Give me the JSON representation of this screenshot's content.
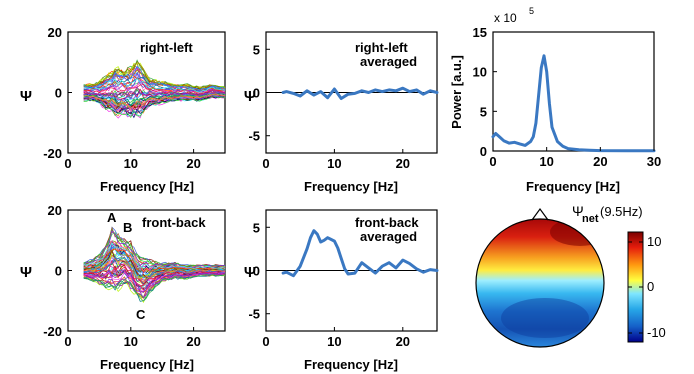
{
  "panels": {
    "p1": {
      "annotation": "right-left",
      "xlabel": "Frequency [Hz]",
      "ylabel": "Ψ"
    },
    "p2": {
      "annotation_line1": "right-left",
      "annotation_line2": "averaged",
      "xlabel": "Frequency [Hz]",
      "ylabel": "Ψ"
    },
    "p3": {
      "multiplier_base": "x 10",
      "multiplier_exp": "5",
      "xlabel": "Frequency [Hz]",
      "ylabel": "Power [a.u.]"
    },
    "p4": {
      "annotation": "front-back",
      "label_a": "A",
      "label_b": "B",
      "label_c": "C",
      "xlabel": "Frequency [Hz]",
      "ylabel": "Ψ"
    },
    "p5": {
      "annotation_line1": "front-back",
      "annotation_line2": "averaged",
      "xlabel": "Frequency [Hz]",
      "ylabel": "Ψ"
    },
    "p6": {
      "title_psi": "Ψ",
      "title_sub": "net",
      "title_freq": "(9.5Hz)",
      "colorbar_ticks": [
        "10",
        "0",
        "-10"
      ]
    }
  },
  "chart_data": [
    {
      "type": "line",
      "panel": "p1",
      "description_series": "many overlapping colored traces (one per channel)",
      "x": [
        2.5,
        4,
        5,
        6,
        7,
        8,
        9,
        10,
        11,
        12,
        13,
        15,
        17,
        19,
        21,
        23,
        25
      ],
      "envelope_upper": [
        3,
        3,
        4,
        6,
        8,
        9,
        8,
        9,
        12,
        9,
        5,
        4,
        3,
        3,
        2,
        3,
        2
      ],
      "envelope_lower": [
        -3,
        -3,
        -4,
        -6,
        -7,
        -9,
        -8,
        -9,
        -9,
        -8,
        -5,
        -4,
        -3,
        -3,
        -3,
        -2,
        -2
      ],
      "xlim": [
        0,
        25
      ],
      "ylim": [
        -20,
        20
      ],
      "xticks": [
        "0",
        "10",
        "20"
      ],
      "yticks": [
        "20",
        "0",
        "-20"
      ],
      "grid": false
    },
    {
      "type": "line",
      "panel": "p2",
      "series": [
        {
          "color": "#3a78c2",
          "x": [
            2.5,
            3,
            4,
            5,
            6,
            7,
            8,
            9,
            10,
            11,
            12,
            13,
            14,
            15,
            16,
            17,
            18,
            19,
            20,
            21,
            22,
            23,
            24,
            25
          ],
          "values": [
            0.0,
            0.1,
            -0.1,
            -0.4,
            0.2,
            -0.3,
            0.1,
            -0.6,
            0.4,
            -0.7,
            -0.2,
            -0.1,
            0.2,
            0.0,
            0.3,
            0.1,
            0.3,
            0.2,
            0.5,
            0.1,
            0.3,
            -0.2,
            0.2,
            0.0
          ]
        }
      ],
      "zero_line": true,
      "xlim": [
        0,
        25
      ],
      "ylim": [
        -7,
        7
      ],
      "xticks": [
        "0",
        "10",
        "20"
      ],
      "yticks": [
        "5",
        "0",
        "-5"
      ],
      "grid": false
    },
    {
      "type": "line",
      "panel": "p3",
      "series": [
        {
          "color": "#3a78c2",
          "x": [
            0,
            0.5,
            1,
            2,
            3,
            4,
            5,
            6,
            7,
            7.5,
            8,
            8.5,
            9,
            9.5,
            10,
            10.5,
            11,
            12,
            13,
            14,
            16,
            18,
            20,
            25,
            30
          ],
          "values": [
            1.8,
            2.2,
            1.9,
            1.3,
            1.0,
            1.1,
            0.9,
            0.7,
            1.2,
            1.8,
            3.5,
            7.0,
            10.5,
            12.0,
            10.0,
            6.0,
            3.0,
            1.2,
            0.6,
            0.3,
            0.15,
            0.1,
            0.05,
            0.03,
            0.02
          ]
        }
      ],
      "xlim": [
        0,
        30
      ],
      "ylim": [
        0,
        15
      ],
      "xticks": [
        "0",
        "10",
        "20",
        "30"
      ],
      "yticks": [
        "15",
        "10",
        "5",
        "0"
      ],
      "grid": false
    },
    {
      "type": "line",
      "panel": "p4",
      "description_series": "many overlapping colored traces (one per channel)",
      "x": [
        2.5,
        4,
        5,
        6,
        7,
        8,
        9,
        10,
        11,
        12,
        13,
        15,
        17,
        19,
        21,
        23,
        25
      ],
      "envelope_upper": [
        3,
        4,
        6,
        9,
        15,
        13,
        11,
        10,
        6,
        5,
        4,
        3,
        3,
        2,
        2,
        2,
        2
      ],
      "envelope_lower": [
        -3,
        -4,
        -5,
        -6,
        -7,
        -7,
        -5,
        -7,
        -10,
        -11,
        -8,
        -4,
        -3,
        -3,
        -2,
        -2,
        -2
      ],
      "xlim": [
        0,
        25
      ],
      "ylim": [
        -20,
        20
      ],
      "xticks": [
        "0",
        "10",
        "20"
      ],
      "yticks": [
        "20",
        "0",
        "-20"
      ],
      "grid": false
    },
    {
      "type": "line",
      "panel": "p5",
      "series": [
        {
          "color": "#3a78c2",
          "x": [
            2.5,
            3,
            4,
            5,
            6,
            6.5,
            7,
            7.5,
            8,
            8.5,
            9,
            9.5,
            10,
            10.5,
            11,
            11.5,
            12,
            13,
            14,
            15,
            16,
            17,
            18,
            19,
            20,
            21,
            22,
            23,
            24,
            25
          ],
          "values": [
            -0.3,
            -0.2,
            -0.6,
            0.5,
            2.5,
            3.8,
            4.6,
            4.2,
            3.3,
            3.5,
            3.8,
            3.6,
            3.4,
            2.6,
            1.4,
            0.2,
            -0.4,
            -0.3,
            0.9,
            0.3,
            -0.3,
            0.5,
            0.9,
            0.3,
            1.2,
            0.8,
            0.2,
            -0.2,
            0.1,
            0.0
          ]
        }
      ],
      "zero_line": true,
      "xlim": [
        0,
        25
      ],
      "ylim": [
        -7,
        7
      ],
      "xticks": [
        "0",
        "10",
        "20"
      ],
      "yticks": [
        "5",
        "0",
        "-5"
      ],
      "grid": false
    },
    {
      "type": "heatmap",
      "panel": "p6",
      "description": "scalp topography map, positive (red) at front/top, negative (blue) at back/bottom",
      "colorbar_range": [
        -12,
        12
      ],
      "colormap": [
        "#00008b",
        "#1560c8",
        "#28a8e8",
        "#7fe6ff",
        "#ffff40",
        "#ff9a10",
        "#e51c0c",
        "#8b0000"
      ]
    }
  ]
}
